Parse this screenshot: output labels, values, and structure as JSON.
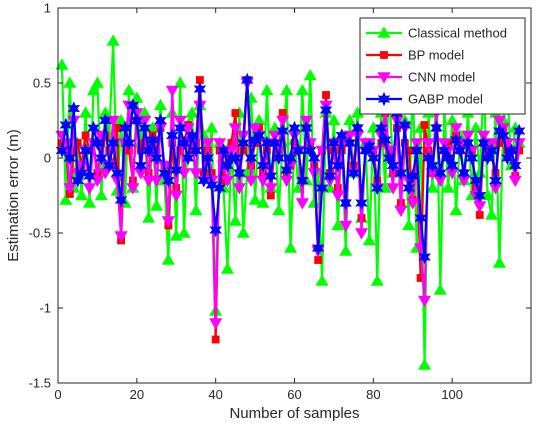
{
  "chart_data": {
    "type": "line",
    "xlabel": "Number of samples",
    "ylabel": "Estimation error (m)",
    "xlim": [
      0,
      120
    ],
    "ylim": [
      -1.5,
      1
    ],
    "x_ticks": [
      0,
      20,
      40,
      60,
      80,
      100
    ],
    "x_tick_labels": [
      "0",
      "20",
      "40",
      "60",
      "80",
      "100"
    ],
    "y_ticks": [
      -1.5,
      -1,
      -0.5,
      0,
      0.5,
      1
    ],
    "y_tick_labels": [
      "-1.5",
      "-1",
      "-0.5",
      "0",
      "0.5",
      "1"
    ],
    "grid": false,
    "legend_position": "top-right",
    "x": [
      1,
      2,
      3,
      4,
      5,
      6,
      7,
      8,
      9,
      10,
      11,
      12,
      13,
      14,
      15,
      16,
      17,
      18,
      19,
      20,
      21,
      22,
      23,
      24,
      25,
      26,
      27,
      28,
      29,
      30,
      31,
      32,
      33,
      34,
      35,
      36,
      37,
      38,
      39,
      40,
      41,
      42,
      43,
      44,
      45,
      46,
      47,
      48,
      49,
      50,
      51,
      52,
      53,
      54,
      55,
      56,
      57,
      58,
      59,
      60,
      61,
      62,
      63,
      64,
      65,
      66,
      67,
      68,
      69,
      70,
      71,
      72,
      73,
      74,
      75,
      76,
      77,
      78,
      79,
      80,
      81,
      82,
      83,
      84,
      85,
      86,
      87,
      88,
      89,
      90,
      91,
      92,
      93,
      94,
      95,
      96,
      97,
      98,
      99,
      100,
      101,
      102,
      103,
      104,
      105,
      106,
      107,
      108,
      109,
      110,
      111,
      112,
      113,
      114,
      115,
      116,
      117
    ],
    "series": [
      {
        "name": "Classical method",
        "color": "#00ff00",
        "marker": "triangle-up",
        "values": [
          0.62,
          -0.28,
          0.5,
          -0.2,
          0.1,
          -0.25,
          0.3,
          -0.3,
          0.45,
          0.5,
          -0.25,
          0.3,
          0.15,
          0.78,
          -0.22,
          0.25,
          -0.3,
          0.45,
          -0.2,
          0.4,
          0.1,
          0.3,
          -0.4,
          0.2,
          -0.32,
          0.35,
          -0.15,
          -0.68,
          0.3,
          -0.52,
          0.5,
          -0.5,
          0.22,
          0.3,
          -0.35,
          0.35,
          0.15,
          -0.1,
          0.2,
          -1.02,
          0.1,
          -0.2,
          -0.74,
          0.1,
          -0.42,
          0.3,
          -0.5,
          -0.1,
          0.4,
          -0.28,
          0.25,
          -0.3,
          0.45,
          -0.2,
          0.2,
          -0.35,
          0.1,
          0.45,
          -0.6,
          0.12,
          -0.2,
          0.45,
          -0.15,
          0.55,
          -0.3,
          -0.1,
          -0.82,
          0.3,
          -0.2,
          0.25,
          -0.45,
          0.15,
          -0.62,
          0.25,
          -0.1,
          0.3,
          -0.4,
          0.1,
          -0.55,
          0.2,
          -0.82,
          0.3,
          -0.2,
          0.5,
          -0.1,
          0.35,
          -0.3,
          0.25,
          -0.45,
          0.55,
          -0.6,
          0.2,
          -1.38,
          0.3,
          -0.2,
          0.5,
          -0.88,
          0.35,
          -0.2,
          0.25,
          -0.35,
          0.15,
          -0.15,
          0.3,
          -0.25,
          0.2,
          -0.1,
          0.5,
          -0.25,
          -0.38,
          0.3,
          -0.7,
          0.25,
          0.45,
          -0.05,
          0.2,
          0.1
        ]
      },
      {
        "name": "BP model",
        "color": "#ff0000",
        "marker": "square",
        "values": [
          0.1,
          0.05,
          -0.24,
          0.05,
          0.1,
          -0.05,
          0.15,
          0.05,
          0.1,
          -0.1,
          0.1,
          0.15,
          0.05,
          -0.05,
          0.2,
          -0.55,
          0.1,
          0.05,
          -0.15,
          0.25,
          0.05,
          0.1,
          -0.1,
          0.15,
          0.05,
          0.2,
          -0.05,
          -0.45,
          0.1,
          -0.2,
          0.05,
          0.1,
          0.22,
          0.05,
          0.1,
          0.52,
          -0.1,
          0.05,
          -0.1,
          -1.21,
          0.05,
          -0.15,
          0.05,
          0.1,
          0.3,
          -0.1,
          0.05,
          0.52,
          -0.05,
          0.1,
          0.2,
          -0.1,
          0.05,
          -0.25,
          0.1,
          0.05,
          0.3,
          -0.1,
          -0.05,
          0.1,
          0.05,
          -0.15,
          0.2,
          0.1,
          -0.05,
          -0.68,
          0.05,
          0.42,
          -0.1,
          0.05,
          -0.2,
          0.05,
          -0.3,
          0.1,
          -0.05,
          0.2,
          -0.4,
          0.05,
          0.1,
          0.05,
          -0.15,
          0.1,
          0.3,
          0.05,
          -0.1,
          0.2,
          -0.3,
          0.1,
          0.05,
          -0.28,
          0.05,
          -0.8,
          0.22,
          0.05,
          -0.1,
          0.2,
          -0.12,
          0.05,
          0.1,
          -0.05,
          0.15,
          0.05,
          -0.1,
          0.1,
          0.05,
          -0.2,
          -0.38,
          0.1,
          0.05,
          0.05,
          -0.1,
          0.1,
          0.2,
          0.05,
          0.05,
          -0.12,
          0.05
        ]
      },
      {
        "name": "CNN model",
        "color": "#ff00ff",
        "marker": "triangle-down",
        "values": [
          0.15,
          0.1,
          -0.2,
          0.25,
          -0.1,
          -0.05,
          0.05,
          -0.2,
          0.1,
          -0.15,
          0.15,
          -0.1,
          -0.05,
          0.25,
          -0.15,
          -0.52,
          0.1,
          0.35,
          -0.2,
          0.3,
          -0.1,
          0.25,
          -0.15,
          0.1,
          -0.15,
          0.2,
          -0.05,
          -0.42,
          0.45,
          -0.25,
          0.25,
          -0.1,
          0.2,
          0.1,
          -0.1,
          0.35,
          -0.15,
          0.1,
          -0.15,
          -1.1,
          0.1,
          -0.05,
          -0.15,
          0.05,
          0.2,
          -0.2,
          0.15,
          0.5,
          -0.15,
          0.2,
          0.15,
          -0.15,
          0.1,
          -0.2,
          0.15,
          0.05,
          0.25,
          -0.15,
          -0.05,
          0.15,
          0.05,
          -0.3,
          0.25,
          0.1,
          -0.1,
          -0.62,
          0.05,
          0.35,
          -0.15,
          0.1,
          -0.25,
          0.1,
          -0.45,
          0.15,
          -0.1,
          0.15,
          -0.5,
          0.1,
          0.1,
          0.05,
          -0.2,
          0.15,
          0.3,
          0.05,
          -0.2,
          0.25,
          -0.35,
          0.2,
          -0.15,
          -0.3,
          0.1,
          -0.6,
          -0.95,
          0.1,
          -0.1,
          0.3,
          -0.15,
          0.1,
          0.05,
          -0.1,
          0.2,
          0.1,
          -0.15,
          0.15,
          0.05,
          -0.25,
          -0.32,
          0.15,
          0.05,
          0.1,
          -0.2,
          0.25,
          0.2,
          0.1,
          0.05,
          -0.15,
          0.1
        ]
      },
      {
        "name": "GABP model",
        "color": "#0000ff",
        "marker": "hexagram",
        "values": [
          0.05,
          0.22,
          0.0,
          0.33,
          -0.15,
          -0.1,
          0.05,
          -0.12,
          0.2,
          0.1,
          0.0,
          0.25,
          -0.05,
          0.1,
          -0.1,
          -0.28,
          0.2,
          0.1,
          0.35,
          0.25,
          -0.05,
          0.2,
          0.05,
          0.12,
          0.0,
          0.25,
          -0.1,
          -0.15,
          0.15,
          -0.08,
          0.2,
          0.1,
          0.0,
          0.15,
          0.05,
          0.46,
          -0.15,
          0.0,
          -0.18,
          -0.48,
          -0.2,
          0.05,
          -0.05,
          0.0,
          0.0,
          -0.1,
          0.1,
          0.52,
          0.0,
          0.12,
          0.15,
          -0.05,
          0.1,
          -0.12,
          0.1,
          0.0,
          0.18,
          -0.08,
          0.0,
          0.2,
          0.05,
          -0.15,
          0.2,
          0.05,
          0.0,
          -0.6,
          -0.2,
          0.32,
          -0.12,
          0.1,
          -0.05,
          0.15,
          -0.3,
          0.1,
          -0.1,
          0.2,
          -0.3,
          0.05,
          0.08,
          0.0,
          -0.2,
          0.2,
          0.12,
          0.0,
          -0.05,
          0.3,
          -0.1,
          0.22,
          -0.2,
          -0.12,
          0.05,
          -0.4,
          -0.66,
          0.0,
          -0.05,
          0.2,
          -0.1,
          0.05,
          0.0,
          -0.05,
          0.12,
          0.05,
          -0.1,
          0.1,
          0.0,
          -0.15,
          -0.25,
          0.1,
          0.0,
          0.05,
          -0.15,
          0.18,
          0.15,
          0.0,
          0.05,
          -0.05,
          0.18
        ]
      }
    ]
  }
}
